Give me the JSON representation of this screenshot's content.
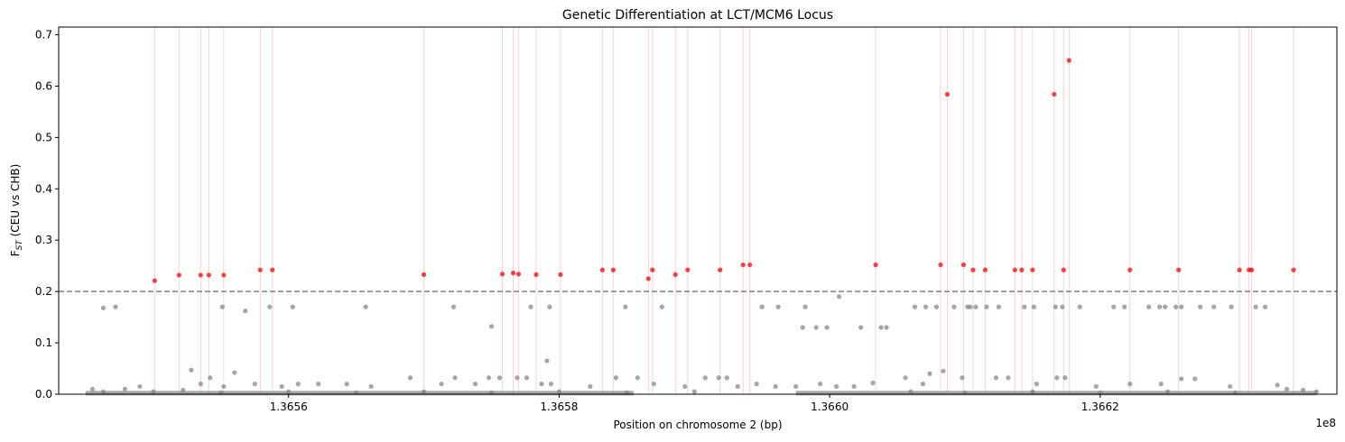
{
  "chart_data": {
    "type": "scatter",
    "title": "Genetic Differentiation at LCT/MCM6 Locus",
    "xlabel": "Position on chromosome 2 (bp)",
    "ylabel": "F_ST (CEU vs CHB)",
    "x_offset_label": "1e8",
    "x_axis_unit": "1e8 bp",
    "xlim": [
      1.36543,
      1.366375
    ],
    "ylim": [
      0,
      0.715
    ],
    "x_ticks": [
      1.3656,
      1.3658,
      1.366,
      1.3662
    ],
    "x_tick_labels": [
      "1.3656",
      "1.3658",
      "1.3660",
      "1.3662"
    ],
    "y_ticks": [
      0,
      0.1,
      0.2,
      0.3,
      0.4,
      0.5,
      0.6,
      0.7
    ],
    "y_tick_labels": [
      "0.0",
      "0.1",
      "0.2",
      "0.3",
      "0.4",
      "0.5",
      "0.6",
      "0.7"
    ],
    "threshold": 0.2,
    "grid": false,
    "legend": "none",
    "colors": {
      "background_points": "#808080",
      "significant_points": "#ff0000",
      "highlight_lines": "#ffb3b3",
      "threshold_line": "#808080"
    },
    "series": [
      {
        "values": [
          [
            1.365463,
            0.168
          ],
          [
            1.365472,
            0.17
          ],
          [
            1.365551,
            0.17
          ],
          [
            1.365568,
            0.162
          ],
          [
            1.365586,
            0.17
          ],
          [
            1.365603,
            0.17
          ],
          [
            1.365657,
            0.17
          ],
          [
            1.365722,
            0.17
          ],
          [
            1.36575,
            0.132
          ],
          [
            1.365779,
            0.17
          ],
          [
            1.365793,
            0.17
          ],
          [
            1.365849,
            0.17
          ],
          [
            1.365876,
            0.17
          ],
          [
            1.36595,
            0.17
          ],
          [
            1.365962,
            0.17
          ],
          [
            1.36598,
            0.13
          ],
          [
            1.365982,
            0.17
          ],
          [
            1.36599,
            0.13
          ],
          [
            1.365998,
            0.13
          ],
          [
            1.366007,
            0.19
          ],
          [
            1.366023,
            0.13
          ],
          [
            1.366038,
            0.13
          ],
          [
            1.366042,
            0.13
          ],
          [
            1.366063,
            0.17
          ],
          [
            1.366071,
            0.17
          ],
          [
            1.366079,
            0.17
          ],
          [
            1.366092,
            0.17
          ],
          [
            1.366102,
            0.17
          ],
          [
            1.366104,
            0.17
          ],
          [
            1.366108,
            0.17
          ],
          [
            1.366116,
            0.17
          ],
          [
            1.366125,
            0.17
          ],
          [
            1.366144,
            0.17
          ],
          [
            1.366151,
            0.17
          ],
          [
            1.366167,
            0.17
          ],
          [
            1.366172,
            0.17
          ],
          [
            1.366185,
            0.17
          ],
          [
            1.36621,
            0.17
          ],
          [
            1.366218,
            0.17
          ],
          [
            1.366236,
            0.17
          ],
          [
            1.366244,
            0.17
          ],
          [
            1.366248,
            0.17
          ],
          [
            1.366256,
            0.17
          ],
          [
            1.36626,
            0.17
          ],
          [
            1.366274,
            0.17
          ],
          [
            1.366284,
            0.17
          ],
          [
            1.366297,
            0.17
          ],
          [
            1.366315,
            0.17
          ],
          [
            1.366322,
            0.17
          ],
          [
            1.365455,
            0.01
          ],
          [
            1.365463,
            0.005
          ],
          [
            1.365479,
            0.01
          ],
          [
            1.36549,
            0.015
          ],
          [
            1.365522,
            0.008
          ],
          [
            1.365528,
            0.047
          ],
          [
            1.365535,
            0.02
          ],
          [
            1.365542,
            0.032
          ],
          [
            1.365552,
            0.015
          ],
          [
            1.36556,
            0.042
          ],
          [
            1.365575,
            0.02
          ],
          [
            1.365595,
            0.015
          ],
          [
            1.365607,
            0.02
          ],
          [
            1.365622,
            0.02
          ],
          [
            1.365643,
            0.02
          ],
          [
            1.365661,
            0.015
          ],
          [
            1.36569,
            0.032
          ],
          [
            1.365713,
            0.02
          ],
          [
            1.365723,
            0.032
          ],
          [
            1.365738,
            0.02
          ],
          [
            1.365748,
            0.032
          ],
          [
            1.365756,
            0.032
          ],
          [
            1.365769,
            0.032
          ],
          [
            1.365776,
            0.032
          ],
          [
            1.365787,
            0.02
          ],
          [
            1.365791,
            0.065
          ],
          [
            1.365794,
            0.02
          ],
          [
            1.365823,
            0.015
          ],
          [
            1.365842,
            0.032
          ],
          [
            1.365858,
            0.032
          ],
          [
            1.36587,
            0.02
          ],
          [
            1.365893,
            0.015
          ],
          [
            1.365908,
            0.032
          ],
          [
            1.365918,
            0.032
          ],
          [
            1.365924,
            0.032
          ],
          [
            1.365932,
            0.015
          ],
          [
            1.365946,
            0.02
          ],
          [
            1.36596,
            0.015
          ],
          [
            1.365975,
            0.015
          ],
          [
            1.365993,
            0.02
          ],
          [
            1.366005,
            0.015
          ],
          [
            1.366018,
            0.015
          ],
          [
            1.366032,
            0.022
          ],
          [
            1.366056,
            0.032
          ],
          [
            1.366069,
            0.02
          ],
          [
            1.366074,
            0.04
          ],
          [
            1.366084,
            0.045
          ],
          [
            1.366098,
            0.032
          ],
          [
            1.366123,
            0.032
          ],
          [
            1.366132,
            0.032
          ],
          [
            1.366153,
            0.02
          ],
          [
            1.366168,
            0.032
          ],
          [
            1.366174,
            0.032
          ],
          [
            1.366197,
            0.015
          ],
          [
            1.366222,
            0.02
          ],
          [
            1.366245,
            0.02
          ],
          [
            1.36626,
            0.03
          ],
          [
            1.36627,
            0.03
          ],
          [
            1.366296,
            0.015
          ],
          [
            1.366331,
            0.018
          ],
          [
            1.366338,
            0.01
          ],
          [
            1.36635,
            0.008
          ],
          [
            1.36636,
            0.005
          ],
          [
            1.3655,
            0.005
          ],
          [
            1.3656,
            0.005
          ],
          [
            1.3657,
            0.005
          ],
          [
            1.3658,
            0.005
          ],
          [
            1.3659,
            0.005
          ],
          [
            1.36606,
            0.005
          ],
          [
            1.36615,
            0.005
          ],
          [
            1.36625,
            0.005
          ],
          [
            1.36555,
            0.003
          ],
          [
            1.36565,
            0.003
          ],
          [
            1.36575,
            0.003
          ],
          [
            1.36585,
            0.003
          ],
          [
            1.3661,
            0.003
          ],
          [
            1.3662,
            0.003
          ],
          [
            1.3663,
            0.003
          ]
        ]
      },
      {
        "values": [
          [
            1.365501,
            0.221
          ],
          [
            1.365519,
            0.232
          ],
          [
            1.365535,
            0.232
          ],
          [
            1.365541,
            0.232
          ],
          [
            1.365552,
            0.232
          ],
          [
            1.365579,
            0.242
          ],
          [
            1.365588,
            0.242
          ],
          [
            1.3657,
            0.233
          ],
          [
            1.365758,
            0.234
          ],
          [
            1.365766,
            0.236
          ],
          [
            1.36577,
            0.234
          ],
          [
            1.365783,
            0.233
          ],
          [
            1.365801,
            0.233
          ],
          [
            1.365832,
            0.242
          ],
          [
            1.36584,
            0.242
          ],
          [
            1.365866,
            0.225
          ],
          [
            1.365869,
            0.242
          ],
          [
            1.365886,
            0.233
          ],
          [
            1.365895,
            0.242
          ],
          [
            1.365919,
            0.242
          ],
          [
            1.365936,
            0.252
          ],
          [
            1.365941,
            0.252
          ],
          [
            1.366034,
            0.252
          ],
          [
            1.366082,
            0.252
          ],
          [
            1.366087,
            0.584
          ],
          [
            1.366099,
            0.252
          ],
          [
            1.366106,
            0.242
          ],
          [
            1.366115,
            0.242
          ],
          [
            1.366137,
            0.242
          ],
          [
            1.366142,
            0.242
          ],
          [
            1.36615,
            0.242
          ],
          [
            1.366166,
            0.584
          ],
          [
            1.366173,
            0.242
          ],
          [
            1.366177,
            0.65
          ],
          [
            1.366222,
            0.242
          ],
          [
            1.366258,
            0.242
          ],
          [
            1.366303,
            0.242
          ],
          [
            1.36631,
            0.242
          ],
          [
            1.366312,
            0.242
          ],
          [
            1.366343,
            0.242
          ]
        ]
      }
    ]
  }
}
